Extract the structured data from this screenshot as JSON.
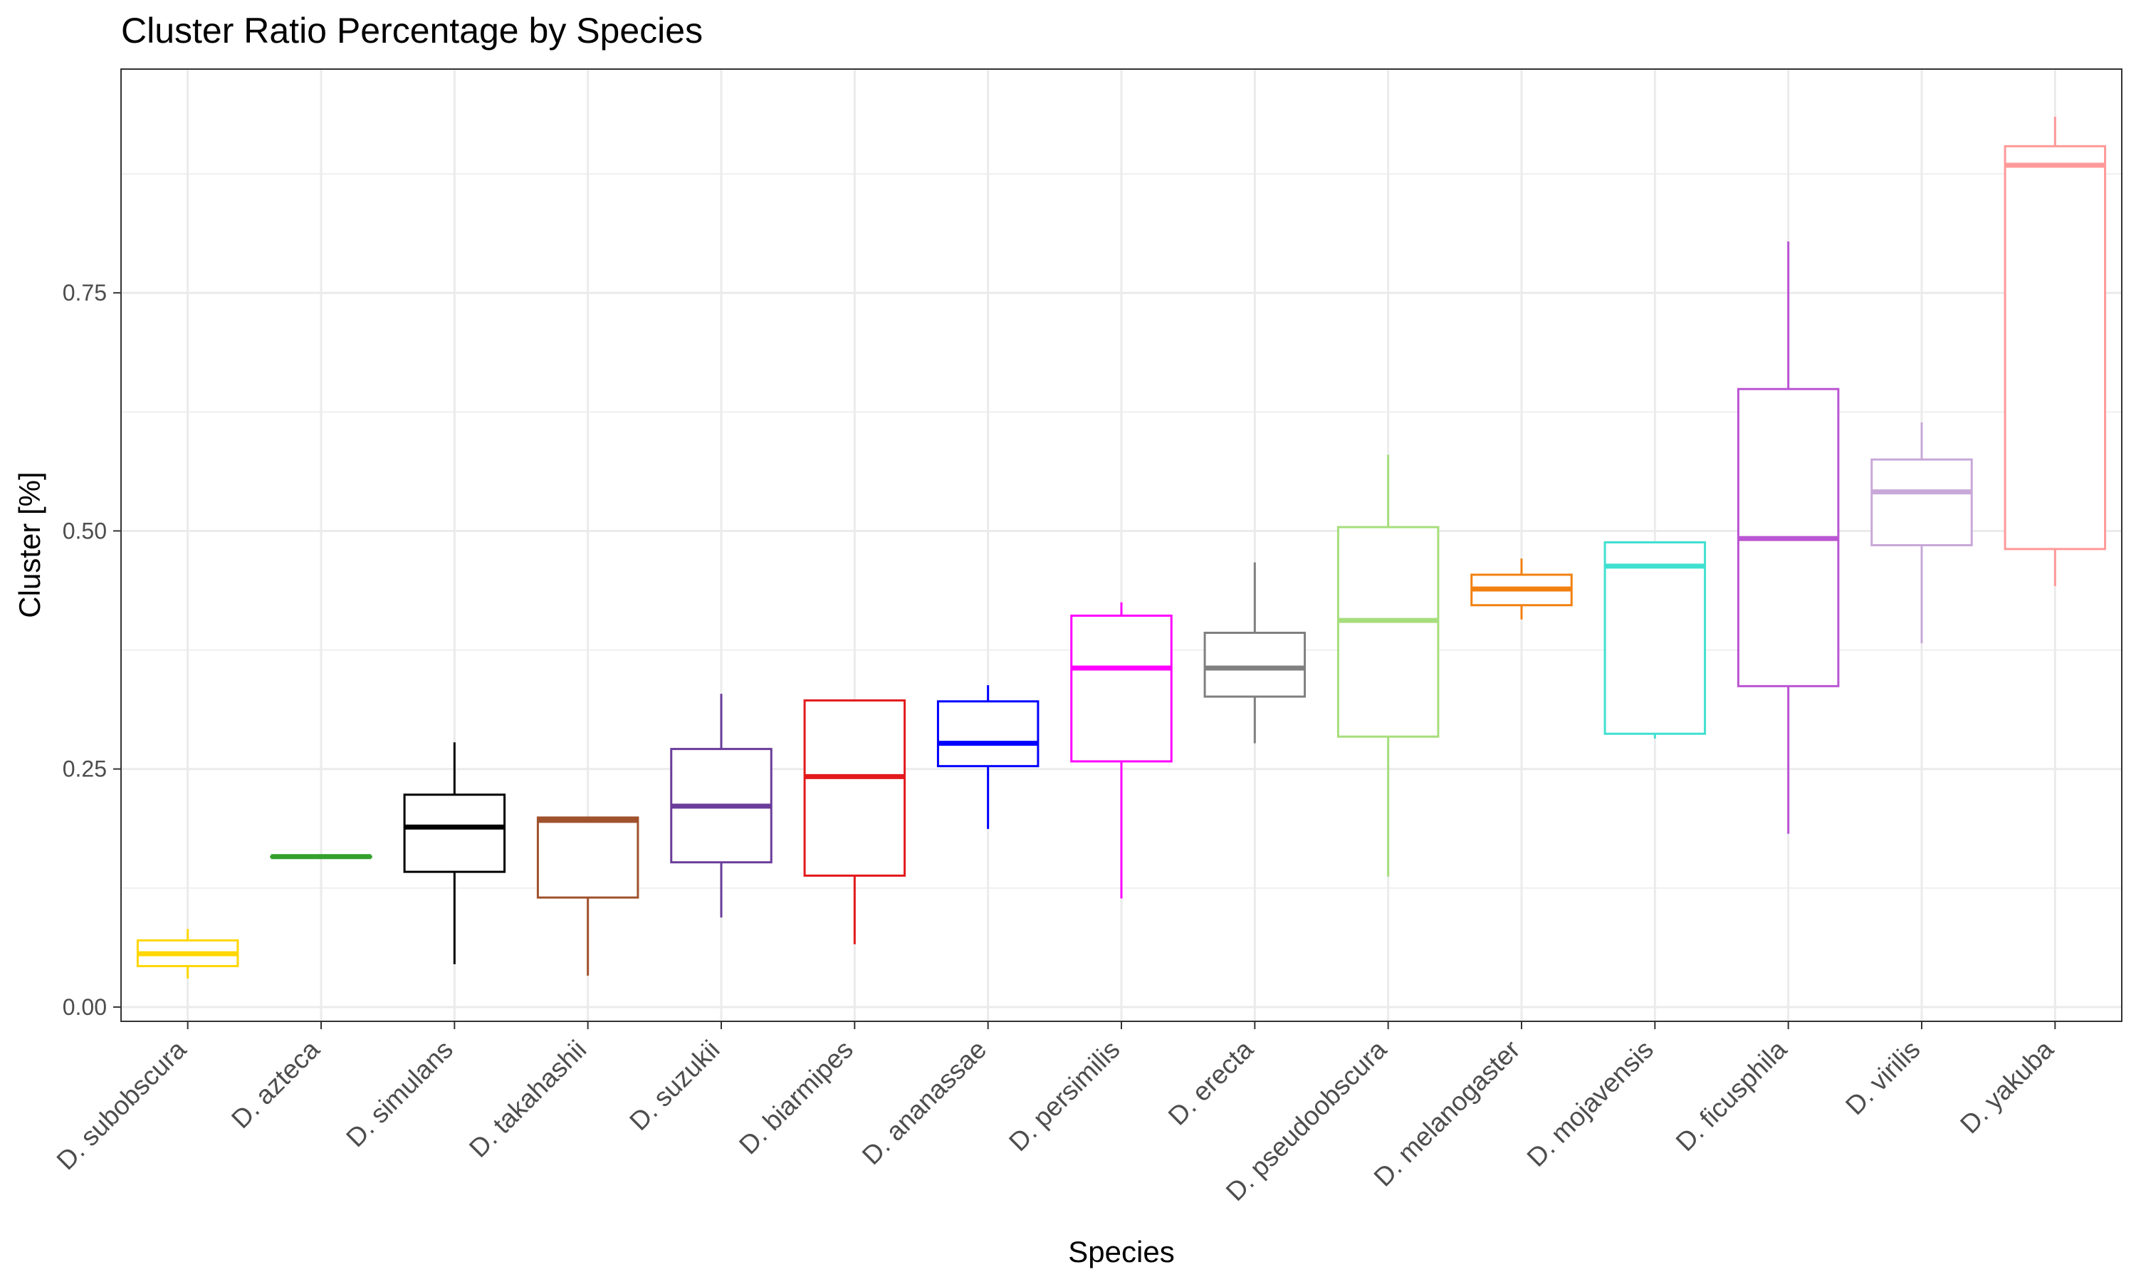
{
  "chart_data": {
    "type": "boxplot",
    "title": "Cluster Ratio Percentage by Species",
    "xlabel": "Species",
    "ylabel": "Cluster [%]",
    "ylim": [
      -0.015,
      0.985
    ],
    "yticks": [
      0.0,
      0.25,
      0.5,
      0.75
    ],
    "ytick_labels": [
      "0.00",
      "0.25",
      "0.50",
      "0.75"
    ],
    "grid": true,
    "legend": "none",
    "categories": [
      "D. subobscura",
      "D. azteca",
      "D. simulans",
      "D. takahashii",
      "D. suzukii",
      "D. biarmipes",
      "D. ananassae",
      "D. persimilis",
      "D. erecta",
      "D. pseudoobscura",
      "D. melanogaster",
      "D. mojavensis",
      "D. ficusphila",
      "D. virilis",
      "D. yakuba"
    ],
    "series": [
      {
        "category": "D. subobscura",
        "color": "#FFD700",
        "min": 0.03,
        "q1": 0.043,
        "median": 0.056,
        "q3": 0.07,
        "max": 0.082
      },
      {
        "category": "D. azteca",
        "color": "#33A02C",
        "min": 0.158,
        "q1": 0.158,
        "median": 0.158,
        "q3": 0.158,
        "max": 0.158
      },
      {
        "category": "D. simulans",
        "color": "#000000",
        "min": 0.045,
        "q1": 0.142,
        "median": 0.189,
        "q3": 0.223,
        "max": 0.278
      },
      {
        "category": "D. takahashii",
        "color": "#A0522D",
        "min": 0.033,
        "q1": 0.115,
        "median": 0.196,
        "q3": 0.199,
        "max": 0.199
      },
      {
        "category": "D. suzukii",
        "color": "#6A3D9A",
        "min": 0.094,
        "q1": 0.152,
        "median": 0.211,
        "q3": 0.271,
        "max": 0.329
      },
      {
        "category": "D. biarmipes",
        "color": "#E31A1C",
        "min": 0.066,
        "q1": 0.138,
        "median": 0.242,
        "q3": 0.322,
        "max": 0.322
      },
      {
        "category": "D. ananassae",
        "color": "#0000FF",
        "min": 0.187,
        "q1": 0.253,
        "median": 0.277,
        "q3": 0.321,
        "max": 0.338
      },
      {
        "category": "D. persimilis",
        "color": "#FF00FF",
        "min": 0.114,
        "q1": 0.258,
        "median": 0.356,
        "q3": 0.411,
        "max": 0.425
      },
      {
        "category": "D. erecta",
        "color": "#808080",
        "min": 0.277,
        "q1": 0.326,
        "median": 0.356,
        "q3": 0.393,
        "max": 0.467
      },
      {
        "category": "D. pseudoobscura",
        "color": "#A6DE7C",
        "min": 0.137,
        "q1": 0.284,
        "median": 0.406,
        "q3": 0.504,
        "max": 0.58
      },
      {
        "category": "D. melanogaster",
        "color": "#F28010",
        "min": 0.407,
        "q1": 0.422,
        "median": 0.439,
        "q3": 0.454,
        "max": 0.471
      },
      {
        "category": "D. mojavensis",
        "color": "#40E0D0",
        "min": 0.282,
        "q1": 0.287,
        "median": 0.463,
        "q3": 0.488,
        "max": 0.488
      },
      {
        "category": "D. ficusphila",
        "color": "#BA55D3",
        "min": 0.182,
        "q1": 0.337,
        "median": 0.492,
        "q3": 0.649,
        "max": 0.804
      },
      {
        "category": "D. virilis",
        "color": "#C8A8D8",
        "min": 0.382,
        "q1": 0.485,
        "median": 0.541,
        "q3": 0.575,
        "max": 0.614
      },
      {
        "category": "D. yakuba",
        "color": "#FF9999",
        "min": 0.442,
        "q1": 0.481,
        "median": 0.884,
        "q3": 0.904,
        "max": 0.935
      }
    ]
  }
}
